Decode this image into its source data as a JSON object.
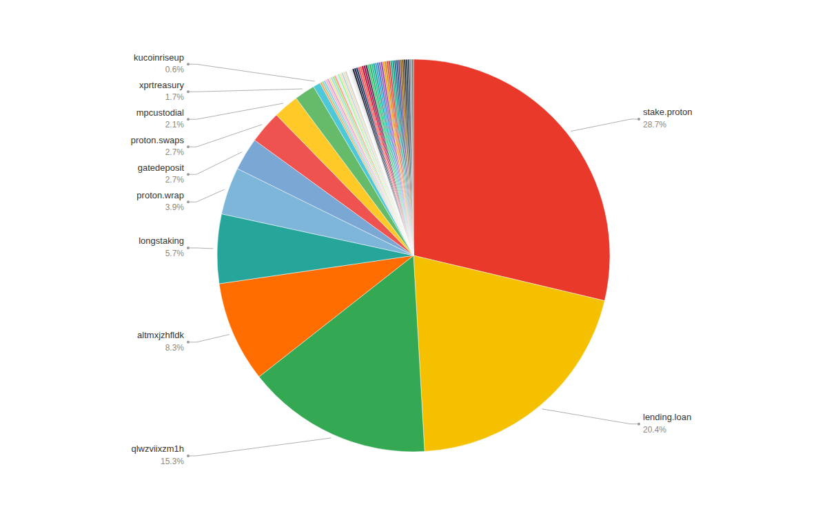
{
  "chart_data": {
    "type": "pie",
    "categories": [
      "stake.proton",
      "lending.loan",
      "qlwzviixzm1h",
      "altmxjzhfldk",
      "longstaking",
      "proton.wrap",
      "gatedeposit",
      "proton.swaps",
      "mpcustodial",
      "xprtreasury",
      "kucoinriseup",
      null,
      null,
      null,
      null,
      null,
      null,
      null,
      null,
      null,
      null,
      null,
      null,
      null,
      null,
      null,
      null,
      null,
      null,
      null,
      null,
      null,
      null,
      null,
      null,
      null,
      null,
      null,
      null,
      null,
      null,
      null,
      null,
      null,
      null,
      null,
      null,
      null,
      null,
      null,
      null,
      null,
      null,
      null,
      null,
      null,
      null,
      null,
      null,
      null,
      null
    ],
    "values": [
      28.7,
      20.4,
      15.3,
      8.3,
      5.7,
      3.9,
      2.7,
      2.7,
      2.1,
      1.7,
      0.6,
      0.158,
      0.158,
      0.158,
      0.158,
      0.158,
      0.158,
      0.158,
      0.158,
      0.158,
      0.158,
      0.158,
      0.158,
      0.158,
      0.158,
      0.158,
      0.158,
      0.158,
      0.158,
      0.158,
      0.158,
      0.158,
      0.158,
      0.158,
      0.158,
      0.158,
      0.158,
      0.158,
      0.158,
      0.158,
      0.158,
      0.158,
      0.158,
      0.158,
      0.158,
      0.158,
      0.158,
      0.158,
      0.158,
      0.158,
      0.158,
      0.158,
      0.158,
      0.158,
      0.158,
      0.158,
      0.158,
      0.158,
      0.158,
      0.158,
      0.158
    ],
    "value_labels": [
      "28.7%",
      "20.4%",
      "15.3%",
      "8.3%",
      "5.7%",
      "3.9%",
      "2.7%",
      "2.7%",
      "2.1%",
      "1.7%",
      "0.6%",
      null,
      null,
      null,
      null,
      null,
      null,
      null,
      null,
      null,
      null,
      null,
      null,
      null,
      null,
      null,
      null,
      null,
      null,
      null,
      null,
      null,
      null,
      null,
      null,
      null,
      null,
      null,
      null,
      null,
      null,
      null,
      null,
      null,
      null,
      null,
      null,
      null,
      null,
      null,
      null,
      null,
      null,
      null,
      null,
      null,
      null,
      null,
      null,
      null,
      null
    ],
    "colors": [
      "#E8392A",
      "#F5C000",
      "#34A853",
      "#FF6D00",
      "#26A69A",
      "#7EB6D9",
      "#7BA7D4",
      "#EF5350",
      "#FFCA28",
      "#66BB6A",
      "#4DC8D8",
      "#F4A460",
      "#98D4A3",
      "#87CEEB",
      "#FFB6C1",
      "#DDA0DD",
      "#F0E68C",
      "#B8D4E8",
      "#90EE90",
      "#FFA07A",
      "#E6E6FA",
      "#98FB98",
      "#FFDAB9",
      "#ADD8E6",
      "#F5DEB3",
      "#D3D3D3",
      "#FFFFFF",
      "#F0F0F0",
      "#E0E0E0",
      "#1A1A2E",
      "#16213E",
      "#0F3460",
      "#E94560",
      "#FF5733",
      "#C70039",
      "#900C3F",
      "#581845",
      "#2ECC71",
      "#27AE60",
      "#1ABC9C",
      "#16A085",
      "#3498DB",
      "#2980B9",
      "#9B59B6",
      "#8E44AD",
      "#F39C12",
      "#D68910",
      "#E74C3C",
      "#CB4335",
      "#17A589",
      "#148F77",
      "#1F618D",
      "#1A5276",
      "#6C3483",
      "#7D6608",
      "#784212",
      "#1B2631",
      "#212F3D",
      "#2C3E50",
      "#839192",
      "#717D7E"
    ],
    "data_labels": true
  }
}
